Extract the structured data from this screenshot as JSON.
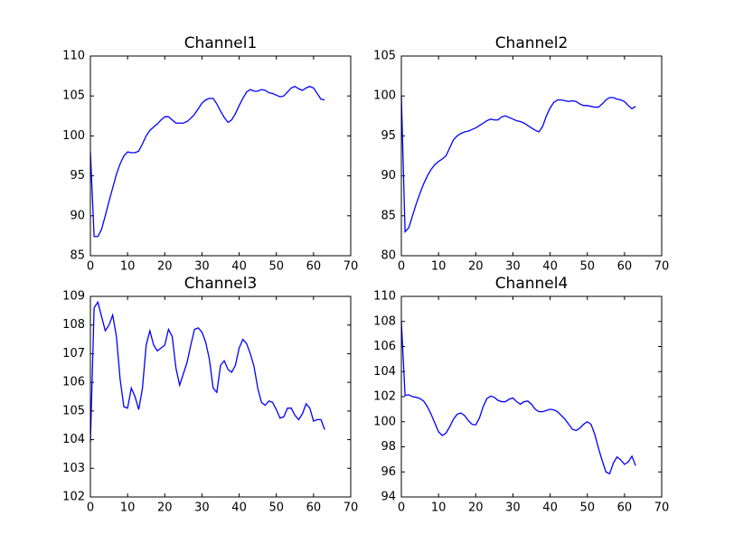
{
  "chart_data": [
    {
      "type": "line",
      "title": "Channel1",
      "x": [
        0,
        1,
        2,
        3,
        4,
        5,
        6,
        7,
        8,
        9,
        10,
        11,
        12,
        13,
        14,
        15,
        16,
        17,
        18,
        19,
        20,
        21,
        22,
        23,
        24,
        25,
        26,
        27,
        28,
        29,
        30,
        31,
        32,
        33,
        34,
        35,
        36,
        37,
        38,
        39,
        40,
        41,
        42,
        43,
        44,
        45,
        46,
        47,
        48,
        49,
        50,
        51,
        52,
        53,
        54,
        55,
        56,
        57,
        58,
        59,
        60,
        61,
        62,
        63
      ],
      "values": [
        98,
        87.4,
        87.4,
        88.3,
        90,
        91.8,
        93.5,
        95.2,
        96.5,
        97.5,
        98,
        97.9,
        97.9,
        98.1,
        99,
        100,
        100.7,
        101.1,
        101.5,
        102,
        102.4,
        102.4,
        102,
        101.6,
        101.6,
        101.6,
        101.8,
        102.2,
        102.7,
        103.4,
        104.1,
        104.5,
        104.7,
        104.7,
        104,
        103.1,
        102.3,
        101.7,
        102,
        102.8,
        103.8,
        104.7,
        105.5,
        105.8,
        105.6,
        105.6,
        105.8,
        105.7,
        105.4,
        105.3,
        105.1,
        104.9,
        105,
        105.5,
        106,
        106.2,
        105.9,
        105.7,
        106,
        106.2,
        106,
        105.3,
        104.6,
        104.5
      ],
      "color": "#0000ff",
      "xlim": [
        0,
        70
      ],
      "ylim": [
        85,
        110
      ],
      "xticks": [
        0,
        10,
        20,
        30,
        40,
        50,
        60,
        70
      ],
      "yticks": [
        85,
        90,
        95,
        100,
        105,
        110
      ]
    },
    {
      "type": "line",
      "title": "Channel2",
      "x": [
        0,
        1,
        2,
        3,
        4,
        5,
        6,
        7,
        8,
        9,
        10,
        11,
        12,
        13,
        14,
        15,
        16,
        17,
        18,
        19,
        20,
        21,
        22,
        23,
        24,
        25,
        26,
        27,
        28,
        29,
        30,
        31,
        32,
        33,
        34,
        35,
        36,
        37,
        38,
        39,
        40,
        41,
        42,
        43,
        44,
        45,
        46,
        47,
        48,
        49,
        50,
        51,
        52,
        53,
        54,
        55,
        56,
        57,
        58,
        59,
        60,
        61,
        62,
        63
      ],
      "values": [
        100,
        83,
        83.5,
        85,
        86.5,
        87.8,
        89,
        90,
        90.8,
        91.4,
        91.8,
        92.1,
        92.5,
        93.5,
        94.5,
        95,
        95.3,
        95.5,
        95.6,
        95.8,
        96,
        96.3,
        96.6,
        96.9,
        97.1,
        97,
        97,
        97.4,
        97.5,
        97.3,
        97.1,
        96.9,
        96.8,
        96.6,
        96.3,
        96,
        95.7,
        95.5,
        96.2,
        97.5,
        98.5,
        99.2,
        99.5,
        99.5,
        99.4,
        99.3,
        99.4,
        99.3,
        99,
        98.8,
        98.8,
        98.7,
        98.6,
        98.6,
        99,
        99.5,
        99.8,
        99.8,
        99.6,
        99.5,
        99.3,
        98.8,
        98.4,
        98.7
      ],
      "color": "#0000ff",
      "xlim": [
        0,
        70
      ],
      "ylim": [
        80,
        105
      ],
      "xticks": [
        0,
        10,
        20,
        30,
        40,
        50,
        60,
        70
      ],
      "yticks": [
        80,
        85,
        90,
        95,
        100,
        105
      ]
    },
    {
      "type": "line",
      "title": "Channel3",
      "x": [
        0,
        1,
        2,
        3,
        4,
        5,
        6,
        7,
        8,
        9,
        10,
        11,
        12,
        13,
        14,
        15,
        16,
        17,
        18,
        19,
        20,
        21,
        22,
        23,
        24,
        25,
        26,
        27,
        28,
        29,
        30,
        31,
        32,
        33,
        34,
        35,
        36,
        37,
        38,
        39,
        40,
        41,
        42,
        43,
        44,
        45,
        46,
        47,
        48,
        49,
        50,
        51,
        52,
        53,
        54,
        55,
        56,
        57,
        58,
        59,
        60,
        61,
        62,
        63
      ],
      "values": [
        103.9,
        108.6,
        108.8,
        108.3,
        107.8,
        108,
        108.35,
        107.6,
        106.1,
        105.15,
        105.1,
        105.8,
        105.5,
        105.05,
        105.8,
        107.3,
        107.8,
        107.3,
        107.1,
        107.2,
        107.3,
        107.85,
        107.6,
        106.5,
        105.9,
        106.3,
        106.7,
        107.3,
        107.85,
        107.9,
        107.75,
        107.4,
        106.8,
        105.8,
        105.65,
        106.6,
        106.75,
        106.45,
        106.35,
        106.6,
        107.2,
        107.5,
        107.35,
        107,
        106.55,
        105.8,
        105.3,
        105.2,
        105.35,
        105.3,
        105.05,
        104.75,
        104.8,
        105.1,
        105.1,
        104.85,
        104.7,
        104.9,
        105.25,
        105.1,
        104.65,
        104.7,
        104.7,
        104.35
      ],
      "color": "#0000ff",
      "xlim": [
        0,
        70
      ],
      "ylim": [
        102,
        109
      ],
      "xticks": [
        0,
        10,
        20,
        30,
        40,
        50,
        60,
        70
      ],
      "yticks": [
        102,
        103,
        104,
        105,
        106,
        107,
        108,
        109
      ]
    },
    {
      "type": "line",
      "title": "Channel4",
      "x": [
        0,
        1,
        2,
        3,
        4,
        5,
        6,
        7,
        8,
        9,
        10,
        11,
        12,
        13,
        14,
        15,
        16,
        17,
        18,
        19,
        20,
        21,
        22,
        23,
        24,
        25,
        26,
        27,
        28,
        29,
        30,
        31,
        32,
        33,
        34,
        35,
        36,
        37,
        38,
        39,
        40,
        41,
        42,
        43,
        44,
        45,
        46,
        47,
        48,
        49,
        50,
        51,
        52,
        53,
        54,
        55,
        56,
        57,
        58,
        59,
        60,
        61,
        62,
        63
      ],
      "values": [
        108,
        102.1,
        102.15,
        102,
        101.95,
        101.85,
        101.65,
        101.2,
        100.6,
        99.9,
        99.2,
        98.9,
        99.1,
        99.6,
        100.2,
        100.6,
        100.7,
        100.5,
        100.1,
        99.8,
        99.75,
        100.3,
        101.2,
        101.85,
        102.05,
        101.95,
        101.7,
        101.6,
        101.6,
        101.8,
        101.9,
        101.6,
        101.4,
        101.6,
        101.65,
        101.4,
        101,
        100.8,
        100.8,
        100.9,
        101,
        100.95,
        100.8,
        100.5,
        100.2,
        99.8,
        99.4,
        99.3,
        99.5,
        99.8,
        100,
        99.8,
        99,
        97.9,
        96.9,
        96,
        95.85,
        96.7,
        97.2,
        96.95,
        96.6,
        96.8,
        97.25,
        96.5
      ],
      "color": "#0000ff",
      "xlim": [
        0,
        70
      ],
      "ylim": [
        94,
        110
      ],
      "xticks": [
        0,
        10,
        20,
        30,
        40,
        50,
        60,
        70
      ],
      "yticks": [
        94,
        96,
        98,
        100,
        102,
        104,
        106,
        108,
        110
      ]
    }
  ]
}
